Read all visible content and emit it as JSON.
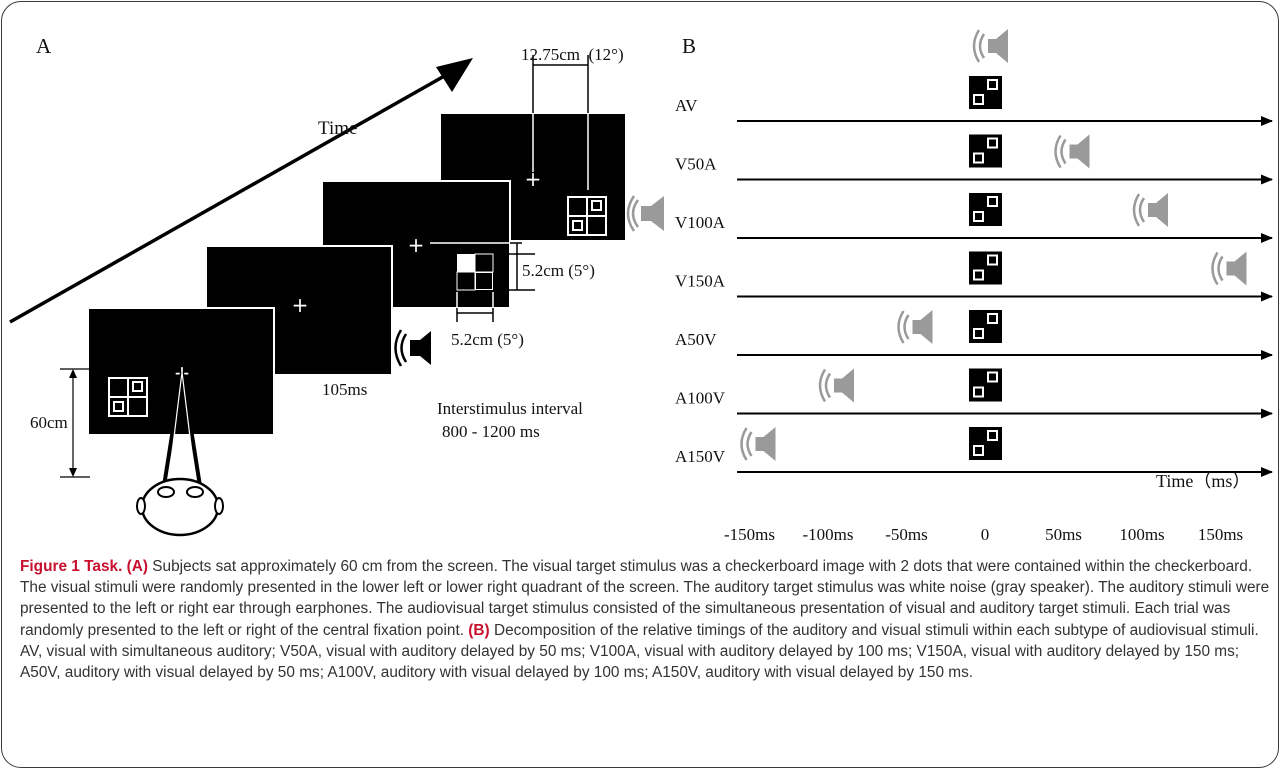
{
  "panelA": {
    "label": "A",
    "time_label": "Time",
    "dist_label": "60cm",
    "duration_label": "105ms",
    "isi_line1": "Interstimulus interval",
    "isi_line2": "800 - 1200 ms",
    "ecc_label": "12.75cm  (12°)",
    "size_v_label": "5.2cm (5°)",
    "size_h_label": "5.2cm (5°)"
  },
  "panelB": {
    "label": "B",
    "rows": [
      {
        "label": "AV",
        "audio_offset_ms": 0
      },
      {
        "label": "V50A",
        "audio_offset_ms": 50
      },
      {
        "label": "V100A",
        "audio_offset_ms": 100
      },
      {
        "label": "V150A",
        "audio_offset_ms": 150
      },
      {
        "label": "A50V",
        "audio_offset_ms": -50
      },
      {
        "label": "A100V",
        "audio_offset_ms": -100
      },
      {
        "label": "A150V",
        "audio_offset_ms": -150
      }
    ],
    "time_label": "Time（ms）",
    "ticks": [
      "-150ms",
      "-100ms",
      "-50ms",
      "0",
      "50ms",
      "100ms",
      "150ms"
    ]
  },
  "colors": {
    "speaker_gray": "#9a9a9a",
    "caption_accent": "#c8102e",
    "caption_text": "#333333"
  },
  "caption": {
    "title": "Figure 1 Task.",
    "a_tag": "(A)",
    "a_text": " Subjects sat approximately 60 cm from the screen. The visual target stimulus was a checkerboard image with 2 dots that were contained within the checkerboard. The visual stimuli were randomly presented in the lower left or lower right quadrant of the screen. The auditory target stimulus was white noise (gray speaker). The auditory stimuli were presented to the left or right ear through earphones. The audiovisual target stimulus consisted of the simultaneous presentation of visual and auditory target stimuli. Each trial was randomly presented to the left or right of the central fixation point. ",
    "b_tag": "(B)",
    "b_text": " Decomposition of the relative timings of the auditory and visual stimuli within each subtype of audiovisual stimuli. AV, visual with simultaneous auditory; V50A, visual with auditory delayed by 50 ms; V100A, visual with auditory delayed by 100 ms; V150A, visual with auditory delayed by 150 ms; A50V, auditory with visual delayed by 50 ms; A100V, auditory with visual delayed by 100 ms; A150V, auditory with visual delayed by 150 ms."
  }
}
